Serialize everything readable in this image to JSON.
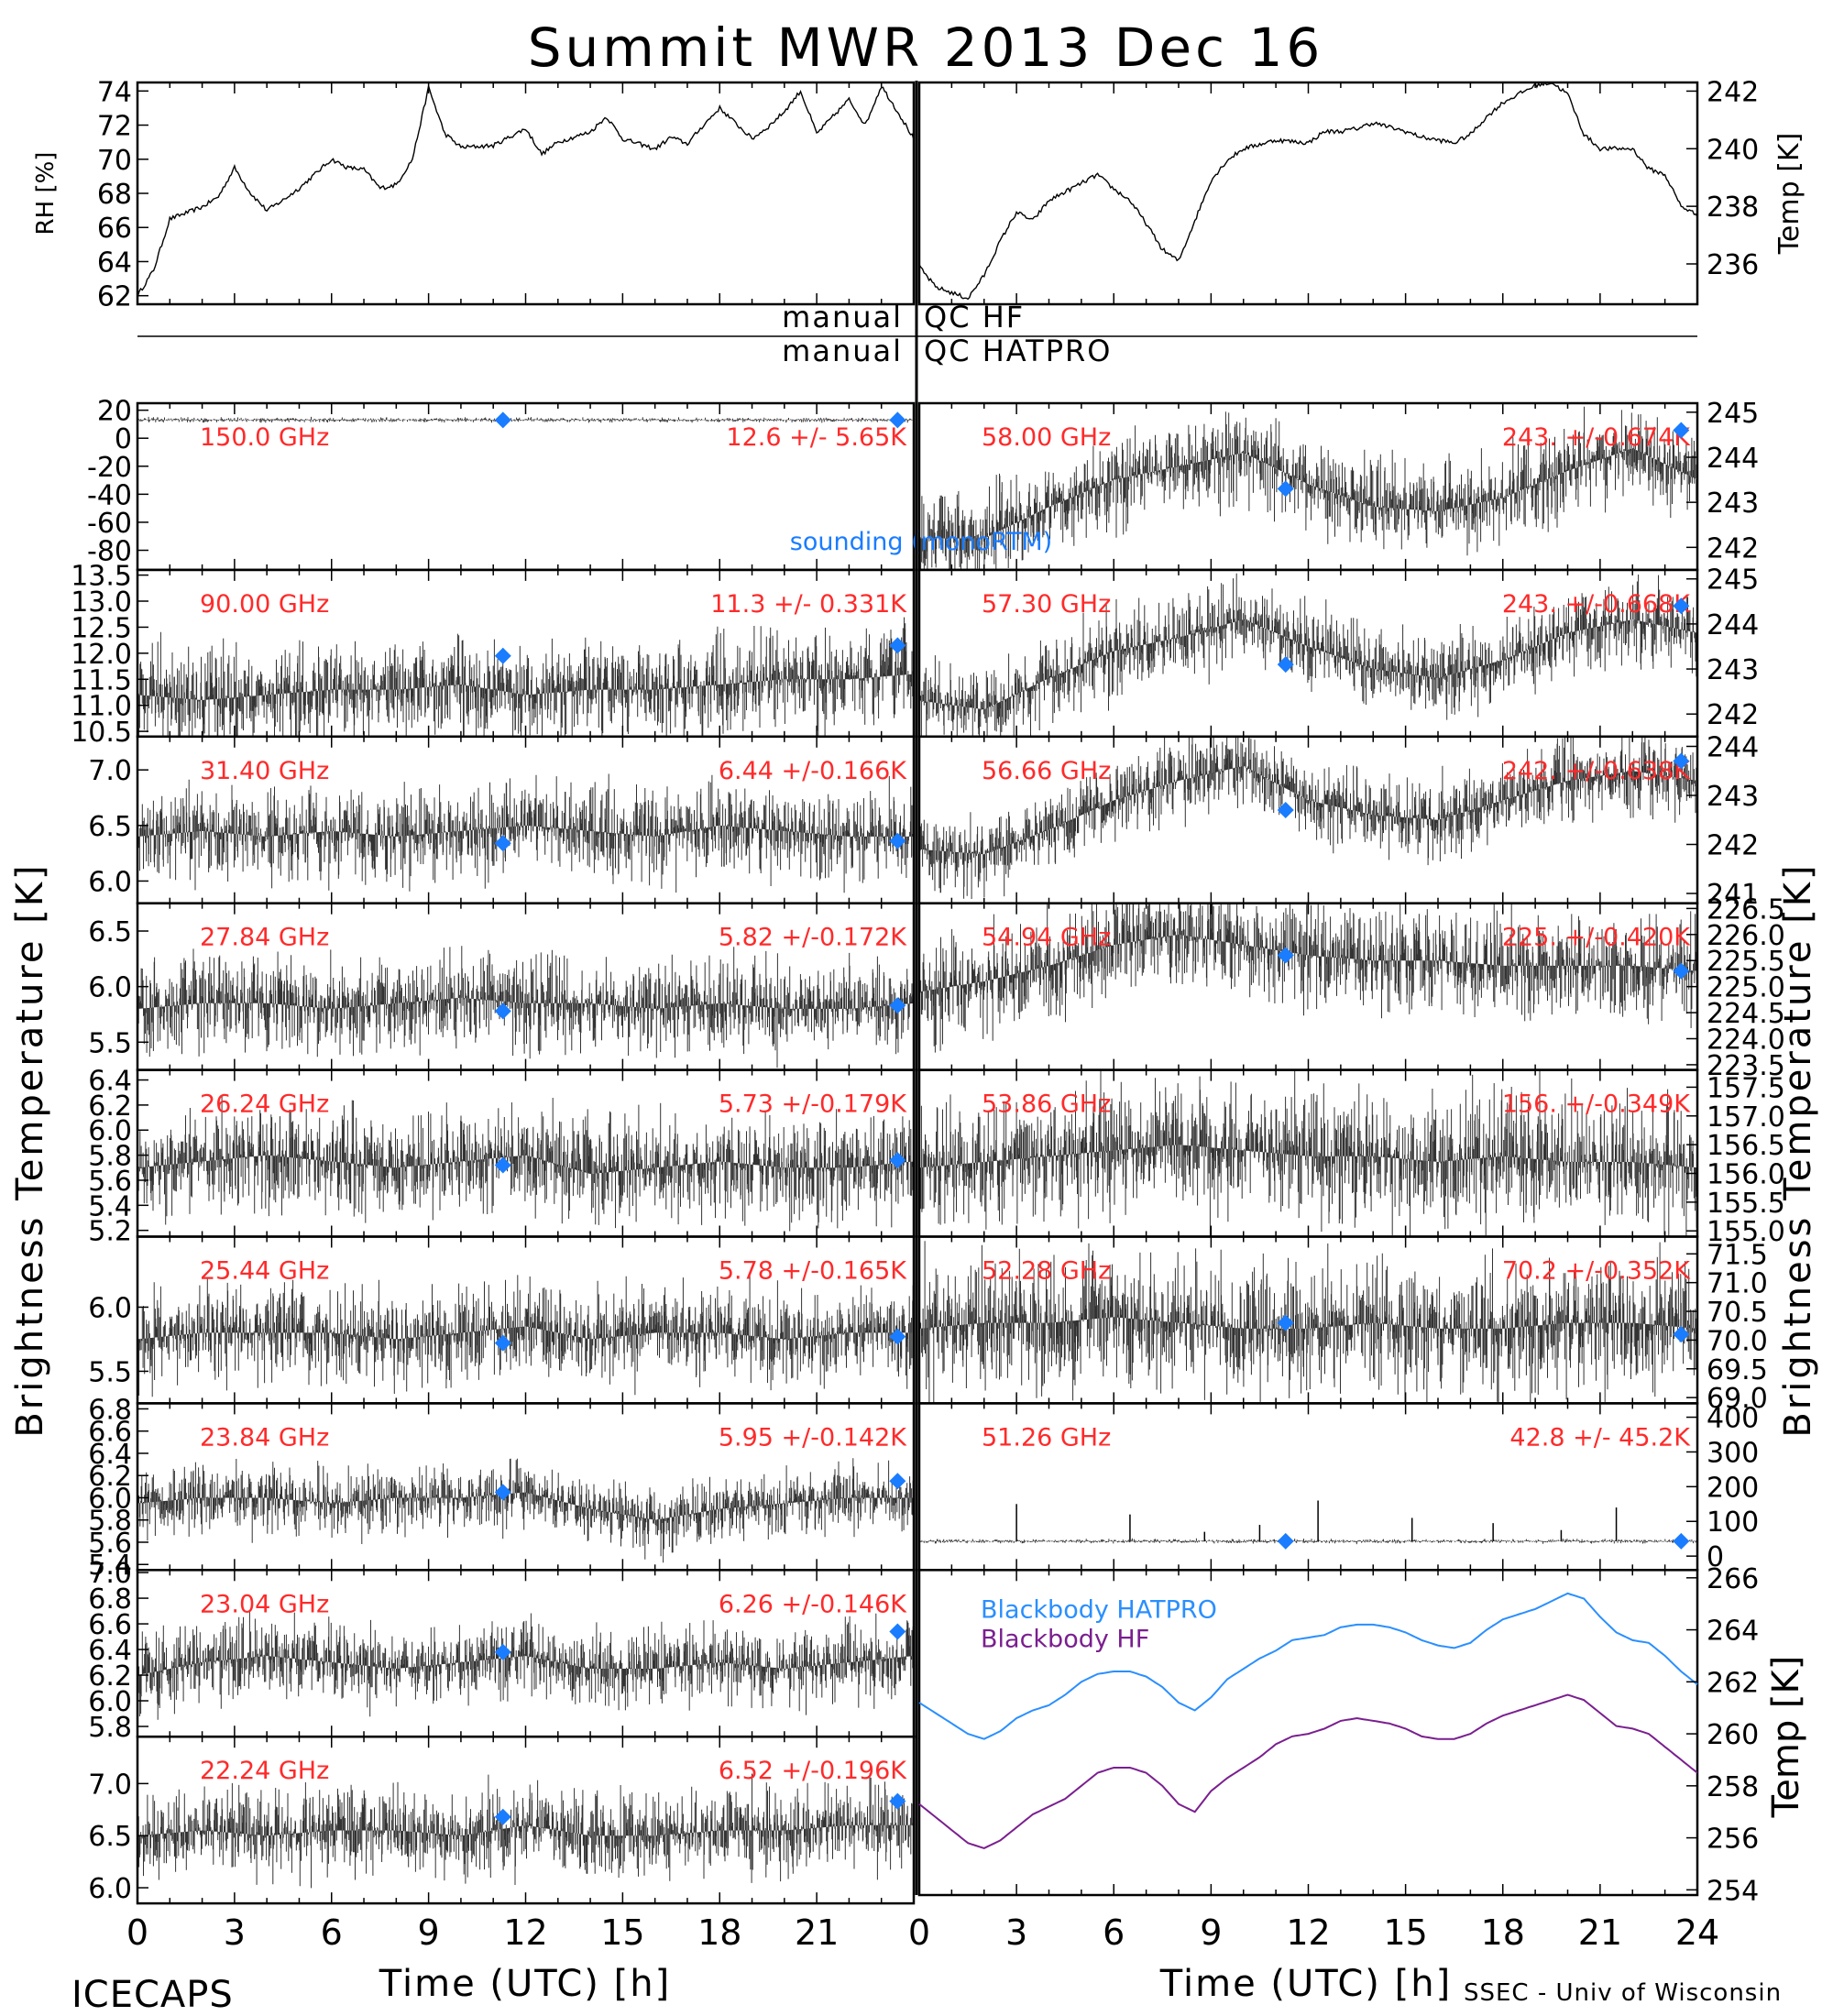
{
  "title": "Summit MWR 2013 Dec 16",
  "footer": {
    "left": "ICECAPS",
    "right": "SSEC - Univ of Wisconsin"
  },
  "colors": {
    "data": "#000000",
    "label": "#ff2a2a",
    "sounding": "#1a7cff",
    "bb_hatpro": "#2a8fff",
    "bb_hf": "#7a1f8f",
    "axis": "#000000"
  },
  "met": {
    "rh": {
      "ylabel": "RH [%]",
      "ticks": [
        62,
        64,
        66,
        68,
        70,
        72,
        74
      ],
      "ylim": [
        61.5,
        74.5
      ]
    },
    "temp": {
      "ylabel": "Temp [K]",
      "ticks": [
        236,
        238,
        240,
        242
      ],
      "ylim": [
        234.6,
        242.3
      ]
    }
  },
  "qc": {
    "left_top": "manual",
    "right_top": "QC HF",
    "left_bottom": "manual",
    "right_bottom": "QC HATPRO"
  },
  "axes": {
    "ylabel_left": "Brightness Temperature [K]",
    "ylabel_right": "Brightness Temperature [K]",
    "xlabel": "Time (UTC) [h]",
    "xticks": [
      "0",
      "3",
      "6",
      "9",
      "12",
      "15",
      "18",
      "21",
      "0",
      "3",
      "6",
      "9",
      "12",
      "15",
      "18",
      "21",
      "24"
    ],
    "xlim": [
      0,
      24
    ]
  },
  "sounding_label": "sounding (monoRTM)",
  "blackbody": {
    "ylabel": "Temp [K]",
    "ticks": [
      254,
      256,
      258,
      260,
      262,
      264,
      266
    ],
    "ylim": [
      253.8,
      266.3
    ],
    "legend": [
      "Blackbody HATPRO",
      "Blackbody HF"
    ]
  },
  "chart_data": [
    {
      "type": "line",
      "panel": "RH",
      "x": [
        0,
        0.5,
        1,
        2,
        2.5,
        3,
        3.5,
        4,
        4.5,
        5,
        6,
        6.5,
        7,
        7.5,
        8,
        8.5,
        9,
        9.5,
        10,
        11,
        12,
        12.5,
        13,
        14,
        14.5,
        15,
        16,
        16.5,
        17,
        17.5,
        18,
        19,
        19.5,
        20,
        20.5,
        21,
        22,
        22.5,
        23,
        23.5,
        24
      ],
      "values": [
        62,
        63.5,
        66.5,
        67.2,
        67.8,
        69.5,
        68,
        67,
        67.6,
        68.3,
        70,
        69.5,
        69.4,
        68.3,
        68.5,
        70,
        74.2,
        71.5,
        70.7,
        70.8,
        71.8,
        70.3,
        71,
        71.6,
        72.5,
        71.2,
        70.6,
        71.3,
        70.9,
        72,
        73,
        71.2,
        71.9,
        72.8,
        74,
        71.5,
        73.5,
        72,
        74.3,
        72.8,
        71.2
      ]
    },
    {
      "type": "line",
      "panel": "Temp",
      "x": [
        0,
        0.5,
        1,
        1.5,
        2,
        2.5,
        3,
        3.5,
        4,
        5,
        5.5,
        6,
        6.5,
        7,
        7.5,
        8,
        8.5,
        9,
        9.5,
        10,
        11,
        12,
        12.5,
        13,
        13.5,
        14,
        15,
        15.5,
        16,
        16.5,
        17,
        17.5,
        18,
        18.5,
        19,
        19.5,
        20,
        20.5,
        21,
        22,
        22.5,
        23,
        23.5,
        24
      ],
      "values": [
        235.9,
        235.2,
        235,
        234.8,
        235.6,
        236.8,
        237.8,
        237.5,
        238.2,
        238.8,
        239.1,
        238.6,
        238.2,
        237.4,
        236.5,
        236.1,
        237.5,
        238.9,
        239.6,
        240,
        240.3,
        240.2,
        240.6,
        240.6,
        240.7,
        240.9,
        240.6,
        240.4,
        240.3,
        240.2,
        240.5,
        241.1,
        241.6,
        241.9,
        242.2,
        242.3,
        241.9,
        240.5,
        240,
        240,
        239.3,
        239.1,
        238,
        237.7
      ]
    },
    {
      "type": "scatter",
      "panel": "150.0 GHz",
      "label": "150.0 GHz",
      "stat": "12.6 +/-  5.65K",
      "ticks": [
        "20",
        "0",
        "-20",
        "-40",
        "-60",
        "-80"
      ],
      "ylim": [
        -94,
        25
      ],
      "base": [
        13,
        13
      ],
      "noise": 0.8,
      "sounding": [
        [
          11.3,
          13
        ],
        [
          23.5,
          13
        ]
      ]
    },
    {
      "type": "scatter",
      "panel": "90.00 GHz",
      "label": "90.00 GHz",
      "stat": "11.3 +/- 0.331K",
      "ticks": [
        "13.5",
        "13.0",
        "12.5",
        "12.0",
        "11.5",
        "11.0",
        "10.5"
      ],
      "ylim": [
        10.4,
        13.6
      ],
      "base": [
        11.2,
        11.1,
        11.2,
        11.3,
        11.3,
        11.4,
        11.2,
        11.3,
        11.3,
        11.4,
        11.5,
        11.5,
        11.6
      ],
      "noise": 0.45,
      "sounding": [
        [
          11.3,
          11.95
        ],
        [
          23.5,
          12.15
        ]
      ]
    },
    {
      "type": "scatter",
      "panel": "31.40 GHz",
      "label": "31.40 GHz",
      "stat": "6.44 +/-0.166K",
      "ticks": [
        "7.0",
        "6.5",
        "6.0"
      ],
      "ylim": [
        5.8,
        7.3
      ],
      "base": [
        6.4,
        6.45,
        6.4,
        6.45,
        6.4,
        6.45,
        6.5,
        6.45,
        6.4,
        6.5,
        6.45,
        6.4,
        6.4
      ],
      "noise": 0.2,
      "sounding": [
        [
          11.3,
          6.34
        ],
        [
          23.5,
          6.36
        ]
      ]
    },
    {
      "type": "scatter",
      "panel": "27.84 GHz",
      "label": "27.84 GHz",
      "stat": "5.82 +/-0.172K",
      "ticks": [
        "6.5",
        "6.0",
        "5.5"
      ],
      "ylim": [
        5.25,
        6.75
      ],
      "base": [
        5.8,
        5.85,
        5.85,
        5.8,
        5.85,
        5.9,
        5.85,
        5.85,
        5.8,
        5.85,
        5.8,
        5.8,
        5.85
      ],
      "noise": 0.2,
      "sounding": [
        [
          11.3,
          5.78
        ],
        [
          23.5,
          5.83
        ]
      ]
    },
    {
      "type": "scatter",
      "panel": "26.24 GHz",
      "label": "26.24 GHz",
      "stat": "5.73 +/-0.179K",
      "ticks": [
        "6.4",
        "6.2",
        "6.0",
        "5.8",
        "5.6",
        "5.4",
        "5.2"
      ],
      "ylim": [
        5.15,
        6.48
      ],
      "base": [
        5.7,
        5.75,
        5.8,
        5.75,
        5.7,
        5.75,
        5.8,
        5.65,
        5.7,
        5.75,
        5.7,
        5.7,
        5.75
      ],
      "noise": 0.2,
      "sounding": [
        [
          11.3,
          5.72
        ],
        [
          23.5,
          5.76
        ]
      ]
    },
    {
      "type": "scatter",
      "panel": "25.44 GHz",
      "label": "25.44 GHz",
      "stat": "5.78 +/-0.165K",
      "ticks": [
        "6.0",
        "5.5"
      ],
      "ylim": [
        5.25,
        6.55
      ],
      "base": [
        5.75,
        5.8,
        5.8,
        5.8,
        5.75,
        5.8,
        5.85,
        5.75,
        5.8,
        5.8,
        5.75,
        5.8,
        5.8
      ],
      "noise": 0.18,
      "sounding": [
        [
          11.3,
          5.72
        ],
        [
          23.5,
          5.77
        ]
      ]
    },
    {
      "type": "scatter",
      "panel": "23.84 GHz",
      "label": "23.84 GHz",
      "stat": "5.95 +/-0.142K",
      "ticks": [
        "6.8",
        "6.6",
        "6.4",
        "6.2",
        "6.0",
        "5.8",
        "5.6",
        "5.4"
      ],
      "ylim": [
        5.35,
        6.85
      ],
      "base": [
        5.95,
        6.0,
        6.0,
        5.95,
        6.0,
        6.0,
        6.05,
        5.9,
        5.8,
        5.9,
        5.95,
        6.0,
        6.0
      ],
      "noise": 0.15,
      "sounding": [
        [
          11.3,
          6.05
        ],
        [
          23.5,
          6.15
        ]
      ]
    },
    {
      "type": "scatter",
      "panel": "23.04 GHz",
      "label": "23.04 GHz",
      "stat": "6.26 +/-0.146K",
      "ticks": [
        "7.0",
        "6.8",
        "6.6",
        "6.4",
        "6.2",
        "6.0",
        "5.8"
      ],
      "ylim": [
        5.72,
        7.02
      ],
      "base": [
        6.2,
        6.3,
        6.35,
        6.3,
        6.25,
        6.3,
        6.35,
        6.25,
        6.25,
        6.3,
        6.25,
        6.3,
        6.35
      ],
      "noise": 0.15,
      "sounding": [
        [
          11.3,
          6.38
        ],
        [
          23.5,
          6.54
        ]
      ]
    },
    {
      "type": "scatter",
      "panel": "22.24 GHz",
      "label": "22.24 GHz",
      "stat": "6.52 +/-0.196K",
      "ticks": [
        "7.0",
        "6.5",
        "6.0"
      ],
      "ylim": [
        5.85,
        7.45
      ],
      "base": [
        6.5,
        6.55,
        6.5,
        6.55,
        6.55,
        6.5,
        6.6,
        6.5,
        6.5,
        6.55,
        6.55,
        6.6,
        6.6
      ],
      "noise": 0.2,
      "sounding": [
        [
          11.3,
          6.68
        ],
        [
          23.5,
          6.83
        ]
      ]
    },
    {
      "type": "scatter",
      "panel": "58.00 GHz",
      "label": "58.00 GHz",
      "stat": "243. +/-0.674K",
      "ticks": [
        "245",
        "244",
        "243",
        "242"
      ],
      "ylim": [
        241.5,
        245.2
      ],
      "base": [
        242.2,
        242.2,
        242.9,
        243.5,
        243.8,
        244.1,
        243.4,
        242.9,
        242.8,
        243.1,
        243.7,
        244.2,
        243.5
      ],
      "noise": 0.5,
      "sounding": [
        [
          11.3,
          243.3
        ],
        [
          23.5,
          244.6
        ]
      ]
    },
    {
      "type": "scatter",
      "panel": "57.30 GHz",
      "label": "57.30 GHz",
      "stat": "243. +/-0.668K",
      "ticks": [
        "245",
        "244",
        "243",
        "242"
      ],
      "ylim": [
        241.5,
        245.2
      ],
      "base": [
        242.3,
        242.1,
        242.8,
        243.4,
        243.7,
        244.1,
        243.5,
        243,
        242.8,
        243.2,
        243.8,
        244.1,
        243.8
      ],
      "noise": 0.45,
      "sounding": [
        [
          11.3,
          243.1
        ],
        [
          23.5,
          244.4
        ]
      ]
    },
    {
      "type": "scatter",
      "panel": "56.66 GHz",
      "label": "56.66 GHz",
      "stat": "242. +/-0.638K",
      "ticks": [
        "244",
        "243",
        "242",
        "241"
      ],
      "ylim": [
        240.8,
        244.2
      ],
      "base": [
        241.9,
        241.8,
        242.3,
        242.9,
        243.3,
        243.6,
        242.9,
        242.6,
        242.5,
        242.9,
        243.3,
        243.5,
        243.3
      ],
      "noise": 0.4,
      "sounding": [
        [
          11.3,
          242.7
        ],
        [
          23.5,
          243.7
        ]
      ]
    },
    {
      "type": "scatter",
      "panel": "54.94 GHz",
      "label": "54.94 GHz",
      "stat": "225. +/-0.420K",
      "ticks": [
        "226.5",
        "226.0",
        "225.5",
        "225.0",
        "224.5",
        "224.0",
        "223.5"
      ],
      "ylim": [
        223.4,
        226.6
      ],
      "base": [
        224.9,
        225.1,
        225.4,
        225.8,
        226,
        225.8,
        225.6,
        225.5,
        225.5,
        225.4,
        225.4,
        225.4,
        225.3
      ],
      "noise": 0.5,
      "sounding": [
        [
          11.3,
          225.6
        ],
        [
          23.5,
          225.3
        ]
      ]
    },
    {
      "type": "scatter",
      "panel": "53.86 GHz",
      "label": "53.86 GHz",
      "stat": "156. +/-0.349K",
      "ticks": [
        "157.5",
        "157.0",
        "156.5",
        "156.0",
        "155.5",
        "155.0"
      ],
      "ylim": [
        154.9,
        157.8
      ],
      "base": [
        156.1,
        156.2,
        156.3,
        156.4,
        156.5,
        156.4,
        156.3,
        156.3,
        156.2,
        156.3,
        156.2,
        156.2,
        156.1
      ],
      "noise": 0.55
    },
    {
      "type": "scatter",
      "panel": "52.28 GHz",
      "label": "52.28 GHz",
      "stat": "70.2 +/-0.352K",
      "ticks": [
        "71.5",
        "71.0",
        "70.5",
        "70.0",
        "69.5",
        "69.0"
      ],
      "ylim": [
        68.9,
        71.8
      ],
      "base": [
        70.2,
        70.3,
        70.3,
        70.4,
        70.3,
        70.2,
        70.2,
        70.3,
        70.2,
        70.2,
        70.3,
        70.3,
        70.2
      ],
      "noise": 0.55,
      "sounding": [
        [
          11.3,
          70.3
        ],
        [
          23.5,
          70.1
        ]
      ]
    },
    {
      "type": "scatter",
      "panel": "51.26 GHz",
      "label": "51.26 GHz",
      "stat": "42.8 +/- 45.2K",
      "ticks": [
        "400",
        "300",
        "200",
        "100",
        "0"
      ],
      "ylim": [
        -40,
        440
      ],
      "base": [
        42.8,
        42.8
      ],
      "noise": 3,
      "spikes": [
        [
          3,
          150
        ],
        [
          6.5,
          120
        ],
        [
          10.5,
          90
        ],
        [
          12.3,
          160
        ],
        [
          15.2,
          110
        ],
        [
          17.7,
          95
        ],
        [
          19.8,
          75
        ],
        [
          21.5,
          140
        ],
        [
          8.8,
          70
        ]
      ],
      "sounding": [
        [
          11.3,
          42.8
        ],
        [
          23.5,
          42.8
        ]
      ]
    },
    {
      "type": "line",
      "panel": "Blackbody",
      "series": [
        {
          "name": "Blackbody HATPRO",
          "x": [
            0,
            0.5,
            1,
            1.5,
            2,
            2.5,
            3,
            3.5,
            4,
            4.5,
            5,
            5.5,
            6,
            6.5,
            7,
            7.5,
            8,
            8.5,
            9,
            9.5,
            10,
            10.5,
            11,
            11.5,
            12,
            12.5,
            13,
            13.5,
            14,
            14.5,
            15,
            15.5,
            16,
            16.5,
            17,
            17.5,
            18,
            18.5,
            19,
            19.5,
            20,
            20.5,
            21,
            21.5,
            22,
            22.5,
            23,
            23.5,
            24
          ],
          "values": [
            261.2,
            260.8,
            260.4,
            260.0,
            259.8,
            260.1,
            260.6,
            260.9,
            261.1,
            261.5,
            262.0,
            262.3,
            262.4,
            262.4,
            262.2,
            261.8,
            261.2,
            260.9,
            261.4,
            262.1,
            262.5,
            262.9,
            263.2,
            263.6,
            263.7,
            263.8,
            264.1,
            264.2,
            264.2,
            264.1,
            263.9,
            263.6,
            263.4,
            263.3,
            263.5,
            264.0,
            264.4,
            264.6,
            264.8,
            265.1,
            265.4,
            265.2,
            264.5,
            263.9,
            263.6,
            263.5,
            263.0,
            262.4,
            261.9
          ]
        },
        {
          "name": "Blackbody HF",
          "x": [
            0,
            0.5,
            1,
            1.5,
            2,
            2.5,
            3,
            3.5,
            4,
            4.5,
            5,
            5.5,
            6,
            6.5,
            7,
            7.5,
            8,
            8.5,
            9,
            9.5,
            10,
            10.5,
            11,
            11.5,
            12,
            12.5,
            13,
            13.5,
            14,
            14.5,
            15,
            15.5,
            16,
            16.5,
            17,
            17.5,
            18,
            18.5,
            19,
            19.5,
            20,
            20.5,
            21,
            21.5,
            22,
            22.5,
            23,
            23.5,
            24
          ],
          "values": [
            257.3,
            256.8,
            256.3,
            255.8,
            255.6,
            255.9,
            256.4,
            256.9,
            257.2,
            257.5,
            258.0,
            258.5,
            258.7,
            258.7,
            258.5,
            258.0,
            257.3,
            257.0,
            257.8,
            258.3,
            258.7,
            259.1,
            259.6,
            259.9,
            260.0,
            260.2,
            260.5,
            260.6,
            260.5,
            260.4,
            260.2,
            259.9,
            259.8,
            259.8,
            260.0,
            260.4,
            260.7,
            260.9,
            261.1,
            261.3,
            261.5,
            261.3,
            260.8,
            260.3,
            260.2,
            260.0,
            259.5,
            259.0,
            258.5
          ]
        }
      ]
    }
  ]
}
